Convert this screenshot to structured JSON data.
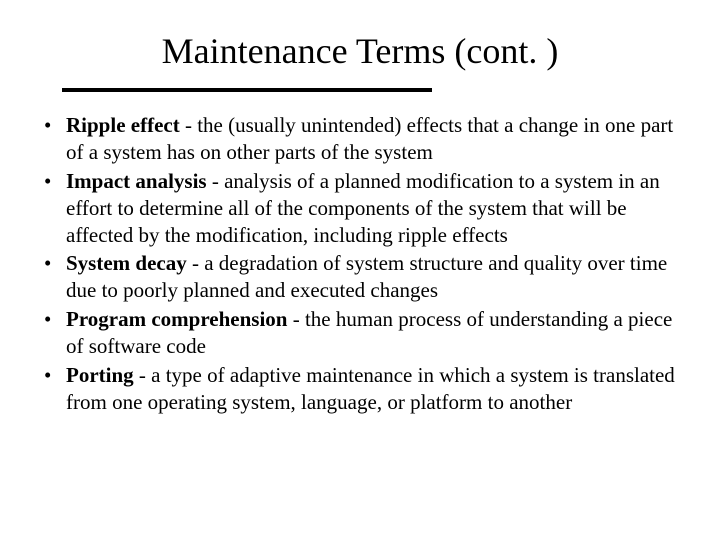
{
  "title": "Maintenance Terms (cont. )",
  "title_fontsize": 36,
  "body_fontsize": 21,
  "text_color": "#000000",
  "background_color": "#ffffff",
  "underline_color": "#000000",
  "underline_thickness": 4,
  "bullets": [
    {
      "term": "Ripple effect",
      "definition": " - the (usually unintended) effects that a change in one part of a system has on other parts of the system"
    },
    {
      "term": "Impact analysis",
      "definition": " - analysis of a planned modification to a system in an effort to determine all of the components of the system that will be affected by the modification, including ripple effects"
    },
    {
      "term": "System decay",
      "definition": " - a degradation of system structure and quality over time due to poorly planned and executed changes"
    },
    {
      "term": "Program comprehension",
      "definition": " - the human process of understanding a piece of software code"
    },
    {
      "term": "Porting",
      "definition": " - a type of adaptive maintenance in which a system is translated from one operating system, language, or platform to another"
    }
  ]
}
